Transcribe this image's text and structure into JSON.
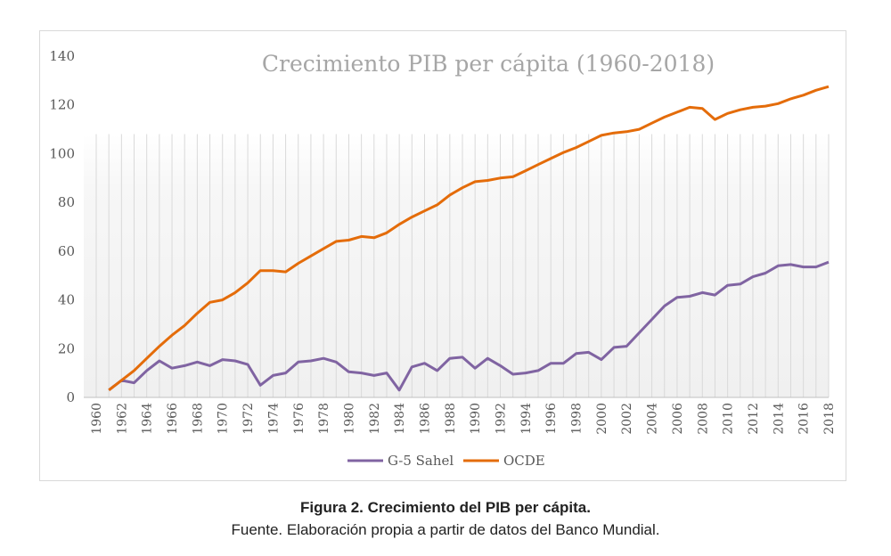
{
  "chart_data": {
    "type": "line",
    "title": "Crecimiento PIB per cápita (1960-2018)",
    "xlabel": "",
    "ylabel": "",
    "ylim": [
      0,
      140
    ],
    "yticks": [
      0,
      20,
      40,
      60,
      80,
      100,
      120,
      140
    ],
    "x": [
      1960,
      1961,
      1962,
      1963,
      1964,
      1965,
      1966,
      1967,
      1968,
      1969,
      1970,
      1971,
      1972,
      1973,
      1974,
      1975,
      1976,
      1977,
      1978,
      1979,
      1980,
      1981,
      1982,
      1983,
      1984,
      1985,
      1986,
      1987,
      1988,
      1989,
      1990,
      1991,
      1992,
      1993,
      1994,
      1995,
      1996,
      1997,
      1998,
      1999,
      2000,
      2001,
      2002,
      2003,
      2004,
      2005,
      2006,
      2007,
      2008,
      2009,
      2010,
      2011,
      2012,
      2013,
      2014,
      2015,
      2016,
      2017,
      2018
    ],
    "xtick_labels": [
      "1960",
      "1962",
      "1964",
      "1966",
      "1968",
      "1970",
      "1972",
      "1974",
      "1976",
      "1978",
      "1980",
      "1982",
      "1984",
      "1986",
      "1988",
      "1990",
      "1992",
      "1994",
      "1996",
      "1998",
      "2000",
      "2002",
      "2004",
      "2006",
      "2008",
      "2010",
      "2012",
      "2014",
      "2016",
      "2018"
    ],
    "grid": "vertical",
    "legend_position": "bottom",
    "series": [
      {
        "name": "G-5 Sahel",
        "color": "#8064a2",
        "values": [
          null,
          3,
          7,
          6,
          11,
          15,
          12,
          13,
          14.5,
          13,
          15.5,
          15,
          13.5,
          5,
          9,
          10,
          14.5,
          15,
          16,
          14.5,
          10.5,
          10,
          9,
          10,
          3,
          12.5,
          14,
          11,
          16,
          16.5,
          12,
          16,
          13,
          9.5,
          10,
          11,
          14,
          14,
          18,
          18.5,
          15.5,
          20.5,
          21,
          26.5,
          32,
          37.5,
          41,
          41.5,
          43,
          42,
          46,
          46.5,
          49.5,
          51,
          54,
          54.5,
          53.5,
          53.5,
          55.5
        ]
      },
      {
        "name": "OCDE",
        "color": "#e46c0a",
        "values": [
          null,
          3,
          7,
          11,
          16,
          21,
          25.5,
          29.5,
          34.5,
          39,
          40,
          43,
          47,
          52,
          52,
          51.5,
          55,
          58,
          61,
          64,
          64.5,
          66,
          65.5,
          67.5,
          71,
          74,
          76.5,
          79,
          83,
          86,
          88.5,
          89,
          90,
          90.5,
          93,
          95.5,
          98,
          100.5,
          102.5,
          105,
          107.5,
          108.5,
          109,
          110,
          112.5,
          115,
          117,
          119,
          118.5,
          114,
          116.5,
          118,
          119,
          119.5,
          120.5,
          122.5,
          124,
          126,
          127.5
        ]
      }
    ]
  },
  "caption": {
    "title": "Figura 2. Crecimiento del PIB per cápita.",
    "source": "Fuente. Elaboración propia a partir de datos del Banco Mundial."
  }
}
